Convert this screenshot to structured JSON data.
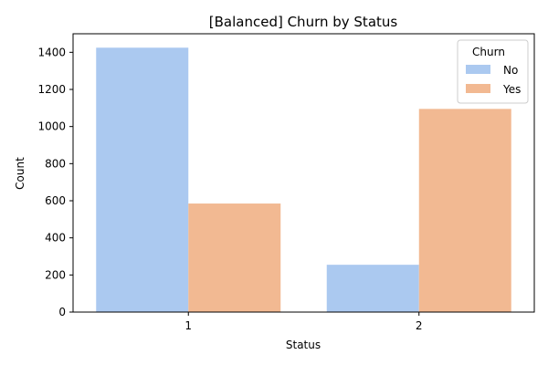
{
  "chart_data": {
    "type": "bar",
    "title": "[Balanced] Churn by Status",
    "xlabel": "Status",
    "ylabel": "Count",
    "categories": [
      "1",
      "2"
    ],
    "series": [
      {
        "name": "No",
        "color": "#abc9f0",
        "values": [
          1425,
          255
        ]
      },
      {
        "name": "Yes",
        "color": "#f2b992",
        "values": [
          585,
          1095
        ]
      }
    ],
    "yticks": [
      0,
      200,
      400,
      600,
      800,
      1000,
      1200,
      1400
    ],
    "ylim": [
      0,
      1500
    ],
    "legend": {
      "title": "Churn",
      "placement": "top-right"
    },
    "grid": false
  }
}
